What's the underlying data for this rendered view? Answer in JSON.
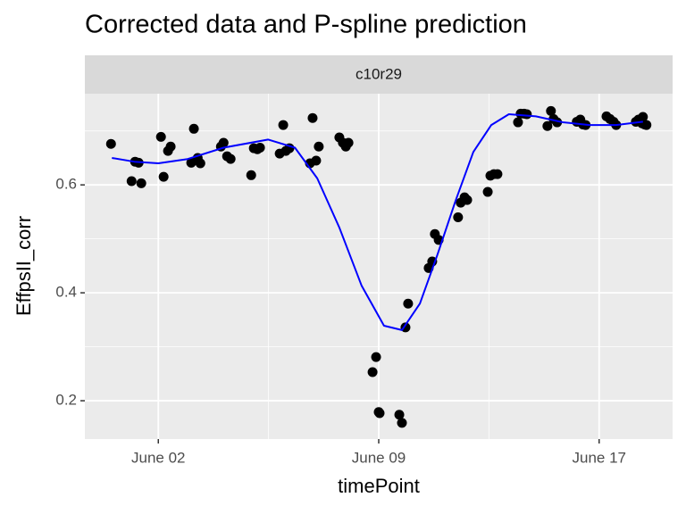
{
  "chart_data": {
    "type": "scatter",
    "title": "Corrected data and P-spline prediction",
    "facet_label": "c10r29",
    "x_label": "timePoint",
    "y_label": "EffpsII_corr",
    "xlim": [
      -0.5,
      19.5
    ],
    "ylim": [
      0.129,
      0.769
    ],
    "xticks": [
      {
        "value": 2,
        "label": "June 02"
      },
      {
        "value": 9.5,
        "label": "June 09"
      },
      {
        "value": 17,
        "label": "June 17"
      }
    ],
    "xminor": [
      5.75,
      13.25
    ],
    "yticks": [
      0.2,
      0.4,
      0.6
    ],
    "yminor": [
      0.3,
      0.5,
      0.7
    ],
    "grid": true,
    "series": [
      {
        "type": "scatter",
        "color": "#000000",
        "x": [
          0.39,
          1.09,
          1.21,
          1.33,
          1.42,
          2.09,
          2.18,
          2.33,
          2.42,
          3.12,
          3.21,
          3.34,
          3.43,
          4.13,
          4.22,
          4.34,
          4.46,
          5.16,
          5.25,
          5.37,
          5.46,
          6.13,
          6.25,
          6.34,
          6.46,
          7.16,
          7.25,
          7.37,
          7.46,
          8.16,
          8.28,
          8.38,
          8.47,
          9.29,
          9.41,
          9.5,
          9.53,
          10.2,
          10.29,
          10.41,
          10.5,
          11.2,
          11.32,
          11.41,
          11.54,
          12.2,
          12.29,
          12.42,
          12.51,
          13.21,
          13.3,
          13.42,
          13.54,
          14.24,
          14.33,
          14.45,
          14.54,
          15.24,
          15.36,
          15.45,
          15.57,
          16.24,
          16.36,
          16.45,
          16.54,
          17.25,
          17.37,
          17.49,
          17.58,
          18.25,
          18.34,
          18.46,
          18.55,
          18.49,
          18.61
        ],
        "values": [
          0.676,
          0.607,
          0.643,
          0.641,
          0.603,
          0.689,
          0.615,
          0.663,
          0.671,
          0.641,
          0.704,
          0.65,
          0.64,
          0.671,
          0.678,
          0.653,
          0.648,
          0.618,
          0.668,
          0.666,
          0.669,
          0.658,
          0.711,
          0.663,
          0.668,
          0.64,
          0.724,
          0.645,
          0.671,
          0.688,
          0.678,
          0.671,
          0.678,
          0.253,
          0.281,
          0.179,
          0.177,
          0.174,
          0.159,
          0.336,
          0.38,
          0.446,
          0.458,
          0.509,
          0.498,
          0.54,
          0.567,
          0.577,
          0.572,
          0.587,
          0.617,
          0.62,
          0.62,
          0.716,
          0.732,
          0.732,
          0.731,
          0.709,
          0.737,
          0.722,
          0.716,
          0.717,
          0.721,
          0.712,
          0.711,
          0.727,
          0.722,
          0.717,
          0.711,
          0.717,
          0.721,
          0.714,
          0.712,
          0.726,
          0.711
        ]
      },
      {
        "type": "line",
        "color": "#0000ff",
        "x": [
          0.42,
          1.18,
          2,
          3,
          4.22,
          5.74,
          6.65,
          7.41,
          8.16,
          8.92,
          9.68,
          10.29,
          10.9,
          11.5,
          12.11,
          12.72,
          13.33,
          13.93,
          14.85,
          15.76,
          16.67,
          17.58,
          18.49
        ],
        "values": [
          0.65,
          0.643,
          0.64,
          0.648,
          0.669,
          0.684,
          0.669,
          0.612,
          0.521,
          0.413,
          0.339,
          0.331,
          0.38,
          0.471,
          0.57,
          0.661,
          0.711,
          0.731,
          0.727,
          0.716,
          0.711,
          0.711,
          0.717
        ]
      }
    ]
  }
}
